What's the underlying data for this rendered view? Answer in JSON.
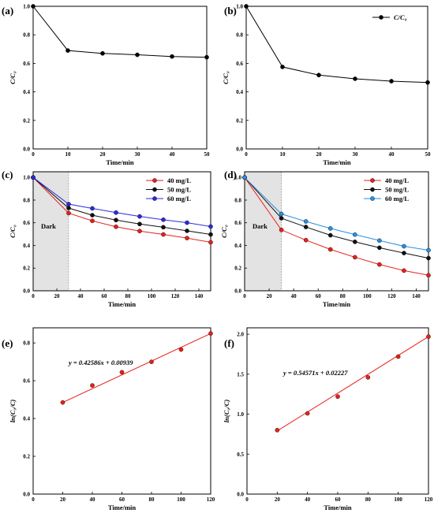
{
  "chart_data": [
    {
      "panel_label": "(a)",
      "type": "line",
      "xlabel": "Time/min",
      "ylabel": "C/C₀",
      "xlim": [
        0,
        50
      ],
      "ylim": [
        0,
        1.0
      ],
      "xticks": [
        "0",
        "10",
        "20",
        "30",
        "40",
        "50"
      ],
      "yticks": [
        "0.0",
        "0.2",
        "0.4",
        "0.6",
        "0.8",
        "1.0"
      ],
      "legend": "none",
      "series": [
        {
          "color": "#000000",
          "x": [
            0,
            10,
            20,
            30,
            40,
            50
          ],
          "y": [
            1.0,
            0.69,
            0.67,
            0.66,
            0.648,
            0.643
          ]
        }
      ]
    },
    {
      "panel_label": "(b)",
      "type": "line",
      "xlabel": "Time/min",
      "ylabel": "C/C₀",
      "xlim": [
        0,
        50
      ],
      "ylim": [
        0,
        1.0
      ],
      "xticks": [
        "0",
        "10",
        "20",
        "30",
        "40",
        "50"
      ],
      "yticks": [
        "0.0",
        "0.2",
        "0.4",
        "0.6",
        "0.8",
        "1.0"
      ],
      "legend": "top-right",
      "series": [
        {
          "name": "C/C₀",
          "color": "#000000",
          "x": [
            0,
            10,
            20,
            30,
            40,
            50
          ],
          "y": [
            1.0,
            0.575,
            0.518,
            0.492,
            0.475,
            0.466
          ]
        }
      ]
    },
    {
      "panel_label": "(c)",
      "type": "line",
      "xlabel": "Time/min",
      "ylabel": "C/C₀",
      "xlim": [
        0,
        150
      ],
      "ylim": [
        0,
        1.05
      ],
      "xticks": [
        "0",
        "20",
        "40",
        "60",
        "80",
        "100",
        "120",
        "140"
      ],
      "yticks": [
        "0.0",
        "0.2",
        "0.4",
        "0.6",
        "0.8",
        "1.0"
      ],
      "legend": "top-right",
      "shaded_region": {
        "x0": 0,
        "x1": 30,
        "label": "Dark"
      },
      "series": [
        {
          "name": "40 mg/L",
          "color": "#e8201a",
          "x": [
            0,
            30,
            50,
            70,
            90,
            110,
            130,
            150
          ],
          "y": [
            1.0,
            0.685,
            0.617,
            0.565,
            0.527,
            0.497,
            0.465,
            0.428
          ]
        },
        {
          "name": "50 mg/L",
          "color": "#111111",
          "x": [
            0,
            30,
            50,
            70,
            90,
            110,
            130,
            150
          ],
          "y": [
            1.0,
            0.73,
            0.667,
            0.624,
            0.589,
            0.561,
            0.529,
            0.497
          ]
        },
        {
          "name": "60 mg/L",
          "color": "#2a2ae0",
          "x": [
            0,
            30,
            50,
            70,
            90,
            110,
            130,
            150
          ],
          "y": [
            1.0,
            0.765,
            0.727,
            0.69,
            0.656,
            0.627,
            0.601,
            0.567
          ]
        }
      ]
    },
    {
      "panel_label": "(d)",
      "type": "line",
      "xlabel": "Time/min",
      "ylabel": "C/C₀",
      "xlim": [
        0,
        150
      ],
      "ylim": [
        0,
        1.05
      ],
      "xticks": [
        "0",
        "20",
        "40",
        "60",
        "80",
        "100",
        "120",
        "140"
      ],
      "yticks": [
        "0.0",
        "0.2",
        "0.4",
        "0.6",
        "0.8",
        "1.0"
      ],
      "legend": "top-right",
      "shaded_region": {
        "x0": 0,
        "x1": 30,
        "label": "Dark"
      },
      "series": [
        {
          "name": "40 mg/L",
          "color": "#e8201a",
          "x": [
            0,
            30,
            50,
            70,
            90,
            110,
            130,
            150
          ],
          "y": [
            1.0,
            0.537,
            0.447,
            0.365,
            0.296,
            0.232,
            0.178,
            0.137
          ]
        },
        {
          "name": "50 mg/L",
          "color": "#111111",
          "x": [
            0,
            30,
            50,
            70,
            90,
            110,
            130,
            150
          ],
          "y": [
            1.0,
            0.64,
            0.563,
            0.49,
            0.432,
            0.38,
            0.333,
            0.288
          ]
        },
        {
          "name": "60 mg/L",
          "color": "#2a8fe0",
          "x": [
            0,
            30,
            50,
            70,
            90,
            110,
            130,
            150
          ],
          "y": [
            1.0,
            0.678,
            0.612,
            0.55,
            0.496,
            0.443,
            0.393,
            0.358
          ]
        }
      ]
    },
    {
      "panel_label": "(e)",
      "type": "scatter",
      "xlabel": "Time/min",
      "ylabel": "ln(C₀/C)",
      "xlim": [
        0,
        120
      ],
      "ylim": [
        0,
        0.88
      ],
      "xticks": [
        "0",
        "20",
        "40",
        "60",
        "80",
        "100",
        "120"
      ],
      "yticks": [
        "0.0",
        "0.2",
        "0.4",
        "0.6",
        "0.8"
      ],
      "legend": "none",
      "fit_equation": "y = 0.42586x + 0.00939",
      "fit_line": {
        "x": [
          20,
          120
        ],
        "y": [
          0.485,
          0.85
        ]
      },
      "series": [
        {
          "color": "#e8201a",
          "x": [
            20,
            40,
            60,
            80,
            100,
            120
          ],
          "y": [
            0.485,
            0.575,
            0.645,
            0.7,
            0.765,
            0.85
          ]
        }
      ]
    },
    {
      "panel_label": "(f)",
      "type": "scatter",
      "xlabel": "Time/min",
      "ylabel": "ln(C₀/C)",
      "xlim": [
        0,
        120
      ],
      "ylim": [
        0,
        2.08
      ],
      "xticks": [
        "0",
        "20",
        "40",
        "60",
        "80",
        "100",
        "120"
      ],
      "yticks": [
        "0.0",
        "0.5",
        "1.0",
        "1.5",
        "2.0"
      ],
      "legend": "none",
      "fit_equation": "y = 0.54571x + 0.02227",
      "fit_line": {
        "x": [
          20,
          120
        ],
        "y": [
          0.79,
          1.97
        ]
      },
      "series": [
        {
          "color": "#e8201a",
          "x": [
            20,
            40,
            60,
            80,
            100,
            120
          ],
          "y": [
            0.8,
            1.01,
            1.22,
            1.46,
            1.72,
            1.97
          ]
        }
      ]
    }
  ]
}
